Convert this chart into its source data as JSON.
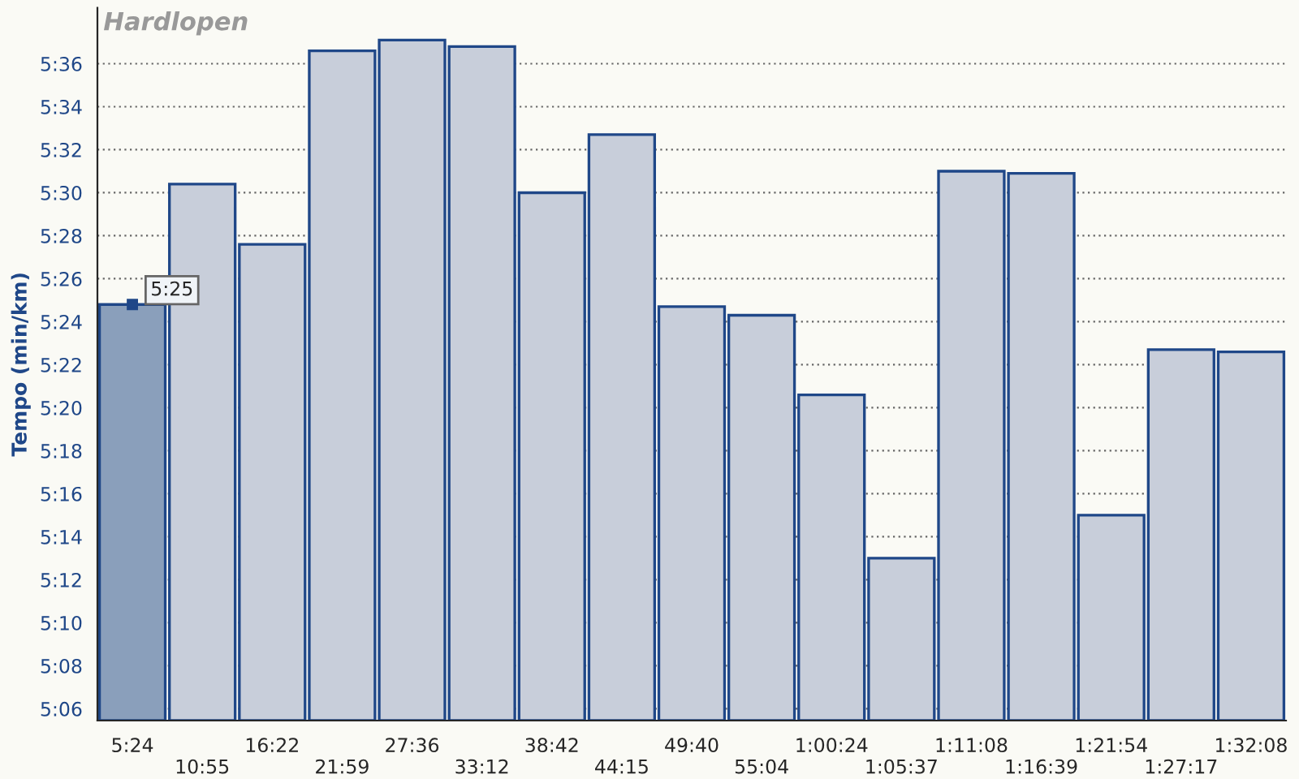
{
  "chart_data": {
    "type": "bar",
    "title": "Hardlopen",
    "ylabel": "Tempo (min/km)",
    "categories": [
      "5:24",
      "10:55",
      "16:22",
      "21:59",
      "27:36",
      "33:12",
      "38:42",
      "44:15",
      "49:40",
      "55:04",
      "1:00:24",
      "1:05:37",
      "1:11:08",
      "1:16:39",
      "1:21:54",
      "1:27:17",
      "1:32:08"
    ],
    "values": [
      324.8,
      330.4,
      327.6,
      336.6,
      337.1,
      336.8,
      330.0,
      332.7,
      324.7,
      324.3,
      320.6,
      313.0,
      331.0,
      330.9,
      315.0,
      322.7,
      322.6
    ],
    "colors": [
      "#8a9fbb",
      "#c8ceda",
      "#c8ceda",
      "#c8ceda",
      "#c8ceda",
      "#c8ceda",
      "#c8ceda",
      "#c8ceda",
      "#c8ceda",
      "#c8ceda",
      "#c8ceda",
      "#c8ceda",
      "#c8ceda",
      "#c8ceda",
      "#c8ceda",
      "#c8ceda",
      "#c8ceda"
    ],
    "ylim": [
      305.45,
      338.6
    ],
    "yticks": [
      {
        "value": 306,
        "label": "5:06"
      },
      {
        "value": 308,
        "label": "5:08"
      },
      {
        "value": 310,
        "label": "5:10"
      },
      {
        "value": 312,
        "label": "5:12"
      },
      {
        "value": 314,
        "label": "5:14"
      },
      {
        "value": 316,
        "label": "5:16"
      },
      {
        "value": 318,
        "label": "5:18"
      },
      {
        "value": 320,
        "label": "5:20"
      },
      {
        "value": 322,
        "label": "5:22"
      },
      {
        "value": 324,
        "label": "5:24"
      },
      {
        "value": 326,
        "label": "5:26"
      },
      {
        "value": 328,
        "label": "5:28"
      },
      {
        "value": 330,
        "label": "5:30"
      },
      {
        "value": 332,
        "label": "5:32"
      },
      {
        "value": 334,
        "label": "5:34"
      },
      {
        "value": 336,
        "label": "5:36"
      }
    ],
    "annotations": [
      {
        "text": "5:25",
        "x": "5:24",
        "y": 324.8
      }
    ],
    "grid": "y",
    "legend": false
  }
}
